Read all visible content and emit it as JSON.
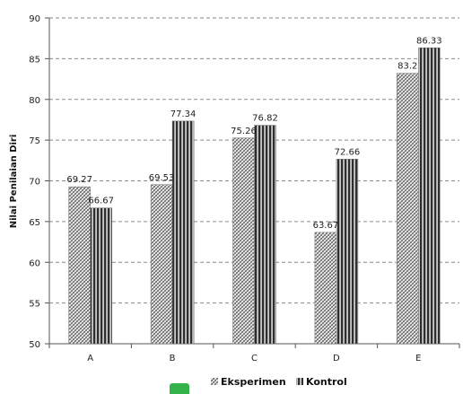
{
  "chart_data": {
    "type": "bar",
    "title": "",
    "xlabel": "",
    "ylabel": "Nilai Penilaian Diri",
    "ylim": [
      50,
      90
    ],
    "yticks": [
      50,
      55,
      60,
      65,
      70,
      75,
      80,
      85,
      90
    ],
    "grid": true,
    "legend_position": "bottom",
    "categories": [
      "A",
      "B",
      "C",
      "D",
      "E"
    ],
    "series": [
      {
        "name": "Eksperimen",
        "values": [
          69.27,
          69.53,
          75.26,
          63.67,
          83.2
        ],
        "labels": [
          "69.27",
          "69.53",
          "75.26",
          "63.67",
          "83.2"
        ],
        "pattern": "crosshatch",
        "color": "#777777"
      },
      {
        "name": "Kontrol",
        "values": [
          66.67,
          77.34,
          76.82,
          72.66,
          86.33
        ],
        "labels": [
          "66.67",
          "77.34",
          "76.82",
          "72.66",
          "86.33"
        ],
        "pattern": "vertical-stripes",
        "color": "#333333"
      }
    ]
  }
}
